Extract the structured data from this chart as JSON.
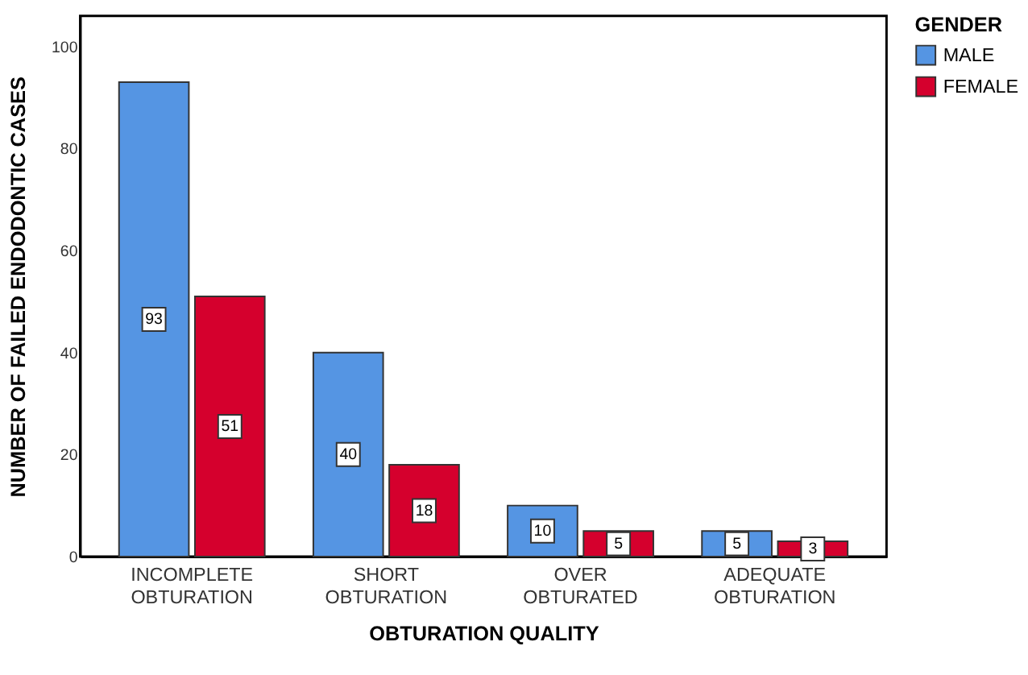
{
  "chart_data": {
    "type": "bar",
    "categories": [
      "INCOMPLETE OBTURATION",
      "SHORT OBTURATION",
      "OVER OBTURATED",
      "ADEQUATE OBTURATION"
    ],
    "series": [
      {
        "name": "MALE",
        "color": "#5595e3",
        "values": [
          93,
          40,
          10,
          5
        ]
      },
      {
        "name": "FEMALE",
        "color": "#d5002d",
        "values": [
          51,
          18,
          5,
          3
        ]
      }
    ],
    "xlabel": "OBTURATION QUALITY",
    "ylabel": "NUMBER OF FAILED ENDODONTIC CASES",
    "legend_title": "GENDER",
    "ylim": [
      0,
      106
    ],
    "yticks": [
      0,
      20,
      40,
      60,
      80,
      100
    ],
    "data_labels": true,
    "legend": "top right",
    "grid": false
  }
}
